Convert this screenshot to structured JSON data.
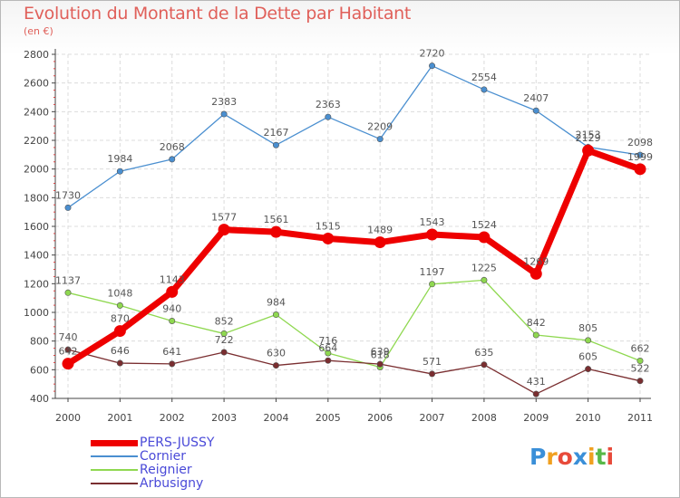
{
  "chart_data": {
    "type": "line",
    "title": "Evolution du Montant de la Dette par Habitant",
    "subtitle": "(en €)",
    "categories": [
      "2000",
      "2001",
      "2002",
      "2003",
      "2004",
      "2005",
      "2006",
      "2007",
      "2008",
      "2009",
      "2010",
      "2011"
    ],
    "ylim": [
      400,
      2800
    ],
    "yticks": [
      400,
      600,
      800,
      1000,
      1200,
      1400,
      1600,
      1800,
      2000,
      2200,
      2400,
      2600,
      2800
    ],
    "grid": true,
    "legend_position": "bottom-left",
    "series": [
      {
        "name": "Cornier",
        "color": "#4a8fd0",
        "values": [
          1730,
          1984,
          2068,
          2383,
          2167,
          2363,
          2209,
          2720,
          2554,
          2407,
          2153,
          2098
        ]
      },
      {
        "name": "Reignier",
        "color": "#8fd850",
        "values": [
          1137,
          1048,
          940,
          852,
          984,
          716,
          618,
          1197,
          1225,
          842,
          805,
          662
        ]
      },
      {
        "name": "Arbusigny",
        "color": "#7a2e30",
        "values": [
          740,
          646,
          641,
          722,
          630,
          664,
          639,
          571,
          635,
          431,
          605,
          522
        ]
      },
      {
        "name": "PERS-JUSSY",
        "color": "#ee0000",
        "values": [
          642,
          870,
          1143,
          1577,
          1561,
          1515,
          1489,
          1543,
          1524,
          1269,
          2129,
          1999
        ]
      }
    ],
    "legend": [
      "PERS-JUSSY",
      "Cornier",
      "Reignier",
      "Arbusigny"
    ]
  },
  "logo": {
    "text": "Proxiti",
    "letters": [
      {
        "ch": "P",
        "color": "#3a8fd8"
      },
      {
        "ch": "r",
        "color": "#f0a020"
      },
      {
        "ch": "o",
        "color": "#e84a3a"
      },
      {
        "ch": "x",
        "color": "#3a8fd8"
      },
      {
        "ch": "i",
        "color": "#f0a020"
      },
      {
        "ch": "t",
        "color": "#58b848"
      },
      {
        "ch": "i",
        "color": "#e84a3a"
      }
    ]
  }
}
